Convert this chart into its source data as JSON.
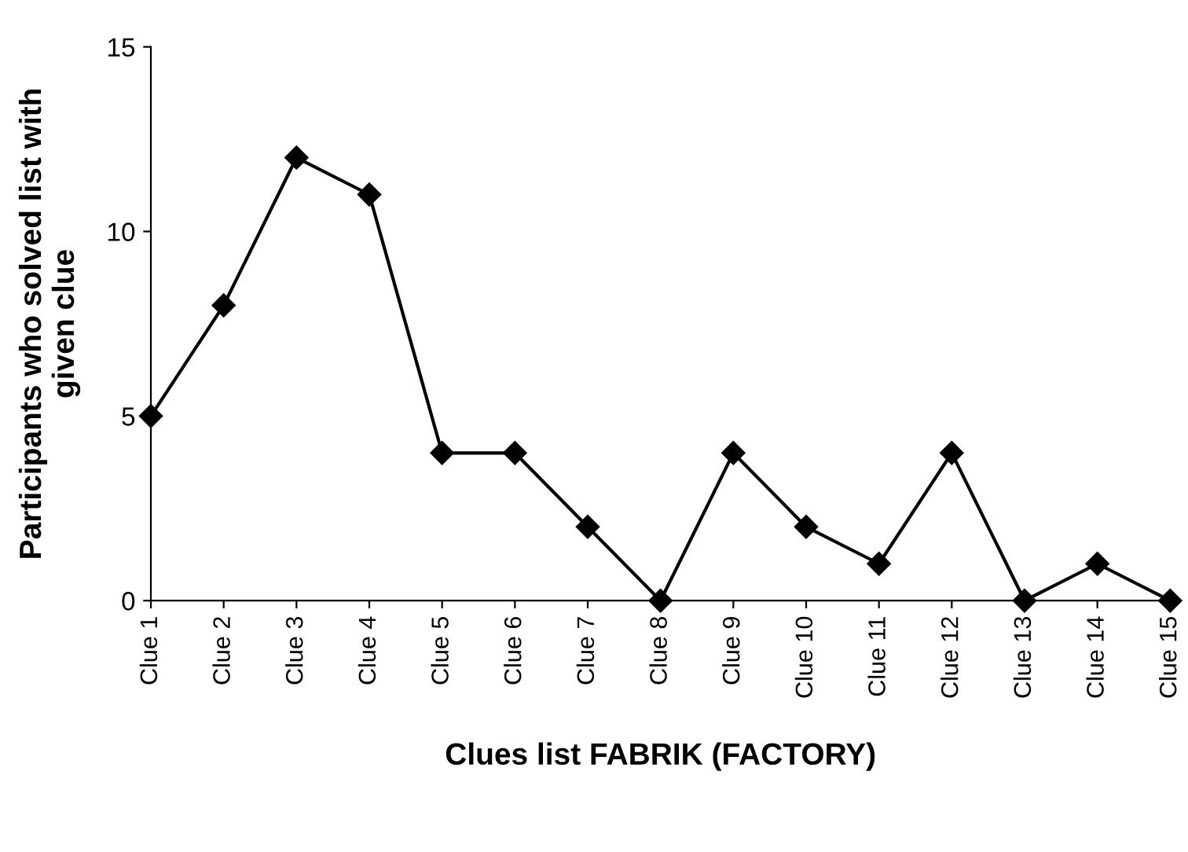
{
  "chart_data": {
    "type": "line",
    "xlabel": "Clues list FABRIK (FACTORY)",
    "ylabel": "Participants who solved list with\ngiven clue",
    "categories": [
      "Clue 1",
      "Clue 2",
      "Clue 3",
      "Clue 4",
      "Clue 5",
      "Clue 6",
      "Clue 7",
      "Clue 8",
      "Clue 9",
      "Clue 10",
      "Clue 11",
      "Clue 12",
      "Clue 13",
      "Clue 14",
      "Clue 15"
    ],
    "series": [
      {
        "color": "#000000",
        "values": [
          5,
          8,
          12,
          11,
          4,
          4,
          2,
          0,
          4,
          2,
          1,
          4,
          0,
          1,
          0
        ]
      }
    ],
    "ylim": [
      0,
      15
    ],
    "yticks": [
      0,
      5,
      10,
      15
    ],
    "marker": "diamond",
    "line_style": "solid",
    "grid": false,
    "legend": false
  }
}
